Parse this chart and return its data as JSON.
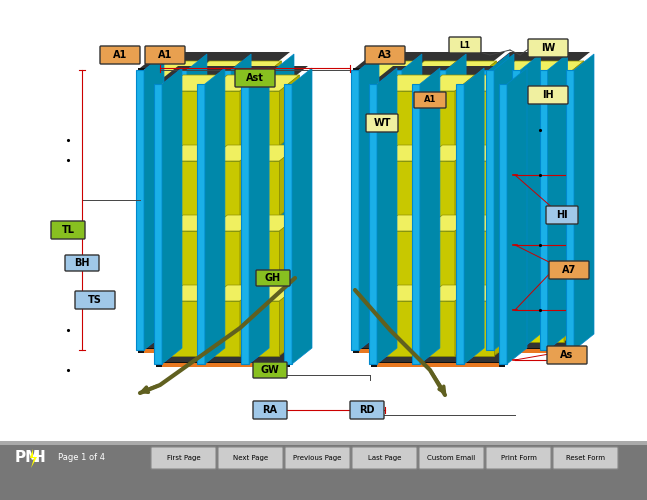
{
  "bg_color": "#ffffff",
  "toolbar_color": "#777777",
  "toolbar_buttons": [
    "First Page",
    "Next Page",
    "Previous Page",
    "Last Page",
    "Custom Email",
    "Print Form",
    "Reset Form"
  ],
  "pmh_text": "PMH",
  "page_text": "Page 1 of 4",
  "rack_blue": "#1ab0e8",
  "rack_orange": "#e87820",
  "box_yellow": "#d8d800",
  "box_yellow_light": "#f0f060",
  "box_yellow_dark": "#b0b000",
  "label_green": "#88c020",
  "label_orange": "#e8a050",
  "label_blue_light": "#a0c8e8",
  "label_yellow_light": "#f0f0a0",
  "dim_line_color": "#cc0000",
  "arrow_color": "#606020",
  "shelf_black": "#111111",
  "col_side": "#0088aa"
}
